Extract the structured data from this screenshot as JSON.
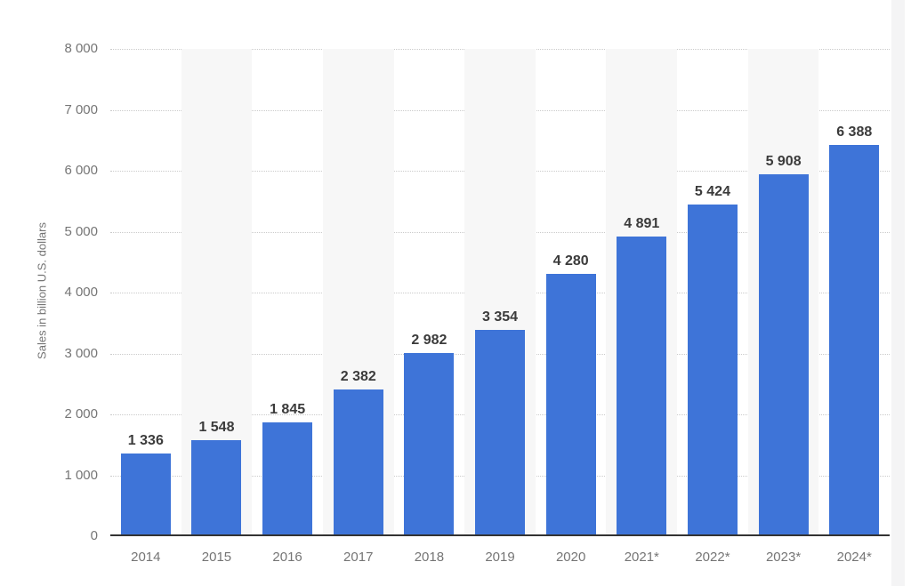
{
  "page": {
    "background": "#ffffff"
  },
  "chart_data": {
    "type": "bar",
    "title": "",
    "xlabel": "",
    "ylabel": "Sales in billion U.S. dollars",
    "ylim": [
      0,
      8000
    ],
    "y_tick_interval": 1000,
    "y_tick_labels": [
      "0",
      "1 000",
      "2 000",
      "3 000",
      "4 000",
      "5 000",
      "6 000",
      "7 000",
      "8 000"
    ],
    "categories": [
      "2014",
      "2015",
      "2016",
      "2017",
      "2018",
      "2019",
      "2020",
      "2021*",
      "2022*",
      "2023*",
      "2024*"
    ],
    "values": [
      1336,
      1548,
      1845,
      2382,
      2982,
      3354,
      4280,
      4891,
      5424,
      5908,
      6388
    ],
    "value_labels": [
      "1 336",
      "1 548",
      "1 845",
      "2 382",
      "2 982",
      "3 354",
      "4 280",
      "4 891",
      "5 424",
      "5 908",
      "6 388"
    ],
    "grid": "horizontal-dotted",
    "legend": "none",
    "striped_column_indices": [
      1,
      3,
      5,
      7,
      9
    ],
    "colors": {
      "bar": "#3E74D8",
      "stripe": "#f7f7f7",
      "gridline": "#cbcbcb",
      "axis_line": "#333333",
      "tick_label": "#757575",
      "value_label": "#3b3b3b",
      "scroll_strip": "#f4f4f5",
      "background": "#ffffff"
    }
  }
}
